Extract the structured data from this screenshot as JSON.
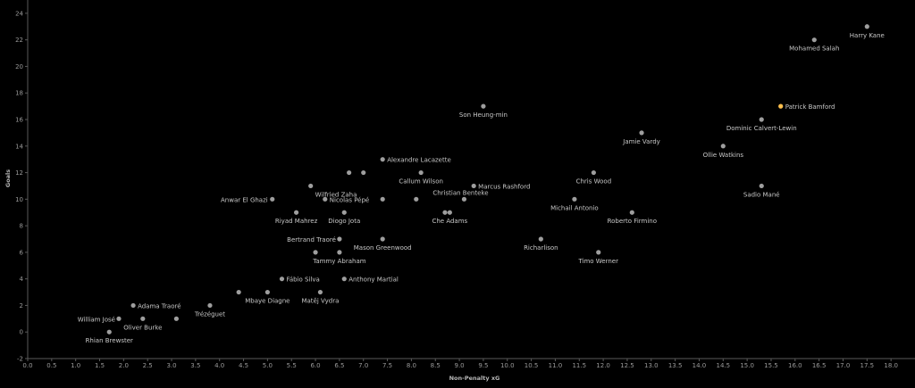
{
  "chart_data": {
    "type": "scatter",
    "title": "",
    "xlabel": "Non-Penalty xG",
    "ylabel": "Goals",
    "xlim": [
      0,
      18.5
    ],
    "ylim": [
      -2,
      25
    ],
    "x_ticks": [
      "0.0",
      "0.5",
      "1.0",
      "1.5",
      "2.0",
      "2.5",
      "3.0",
      "3.5",
      "4.0",
      "4.5",
      "5.0",
      "5.5",
      "6.0",
      "6.5",
      "7.0",
      "7.5",
      "8.0",
      "8.5",
      "9.0",
      "9.5",
      "10.0",
      "10.5",
      "11.0",
      "11.5",
      "12.0",
      "12.5",
      "13.0",
      "13.5",
      "14.0",
      "14.5",
      "15.0",
      "15.5",
      "16.0",
      "16.5",
      "17.0",
      "17.5",
      "18.0"
    ],
    "y_ticks": [
      "-2",
      "0",
      "2",
      "4",
      "6",
      "8",
      "10",
      "12",
      "14",
      "16",
      "18",
      "20",
      "22",
      "24"
    ],
    "grid": false,
    "point_color": "#9e9e9e",
    "highlight_color": "#ffc04d",
    "points": [
      {
        "label": "Harry Kane",
        "x": 17.5,
        "y": 23,
        "highlight": false
      },
      {
        "label": "Mohamed Salah",
        "x": 16.4,
        "y": 22,
        "highlight": false
      },
      {
        "label": "Patrick Bamford",
        "x": 15.7,
        "y": 17,
        "highlight": true
      },
      {
        "label": "Dominic Calvert-Lewin",
        "x": 15.3,
        "y": 16,
        "highlight": false
      },
      {
        "label": "Son Heung-min",
        "x": 9.5,
        "y": 17,
        "highlight": false
      },
      {
        "label": "Jamie Vardy",
        "x": 12.8,
        "y": 15,
        "highlight": false
      },
      {
        "label": "Ollie Watkins",
        "x": 14.5,
        "y": 14,
        "highlight": false
      },
      {
        "label": "Sadio Mané",
        "x": 15.3,
        "y": 11,
        "highlight": false
      },
      {
        "label": "Chris Wood",
        "x": 11.8,
        "y": 12,
        "highlight": false
      },
      {
        "label": "Alexandre Lacazette",
        "x": 7.4,
        "y": 13,
        "highlight": false
      },
      {
        "label": "Callum Wilson",
        "x": 8.2,
        "y": 12,
        "highlight": false
      },
      {
        "label": "",
        "x": 6.7,
        "y": 12,
        "highlight": false
      },
      {
        "label": "",
        "x": 7.0,
        "y": 12,
        "highlight": false
      },
      {
        "label": "Wilfried Zaha",
        "x": 5.9,
        "y": 11,
        "highlight": false
      },
      {
        "label": "Marcus Rashford",
        "x": 9.3,
        "y": 11,
        "highlight": false
      },
      {
        "label": "Christian Benteke",
        "x": 9.1,
        "y": 10,
        "highlight": false
      },
      {
        "label": "",
        "x": 8.1,
        "y": 10,
        "highlight": false
      },
      {
        "label": "",
        "x": 7.4,
        "y": 10,
        "highlight": false
      },
      {
        "label": "Anwar El Ghazi",
        "x": 5.1,
        "y": 10,
        "highlight": false
      },
      {
        "label": "Nicolas Pépé",
        "x": 6.2,
        "y": 10,
        "highlight": false
      },
      {
        "label": "Michail Antonio",
        "x": 11.4,
        "y": 10,
        "highlight": false
      },
      {
        "label": "Riyad Mahrez",
        "x": 5.6,
        "y": 9,
        "highlight": false
      },
      {
        "label": "Diogo Jota",
        "x": 6.6,
        "y": 9,
        "highlight": false
      },
      {
        "label": "Che Adams",
        "x": 8.8,
        "y": 9,
        "highlight": false
      },
      {
        "label": "",
        "x": 8.7,
        "y": 9,
        "highlight": false
      },
      {
        "label": "Roberto Firmino",
        "x": 12.6,
        "y": 9,
        "highlight": false
      },
      {
        "label": "Bertrand Traoré",
        "x": 6.5,
        "y": 7,
        "highlight": false
      },
      {
        "label": "Mason Greenwood",
        "x": 7.4,
        "y": 7,
        "highlight": false
      },
      {
        "label": "Richarlison",
        "x": 10.7,
        "y": 7,
        "highlight": false
      },
      {
        "label": "Tammy Abraham",
        "x": 6.5,
        "y": 6,
        "highlight": false
      },
      {
        "label": "",
        "x": 6.0,
        "y": 6,
        "highlight": false
      },
      {
        "label": "Timo Werner",
        "x": 11.9,
        "y": 6,
        "highlight": false
      },
      {
        "label": "Fábio Silva",
        "x": 5.3,
        "y": 4,
        "highlight": false
      },
      {
        "label": "Anthony Martial",
        "x": 6.6,
        "y": 4,
        "highlight": false
      },
      {
        "label": "Mbaye Diagne",
        "x": 5.0,
        "y": 3,
        "highlight": false
      },
      {
        "label": "",
        "x": 4.4,
        "y": 3,
        "highlight": false
      },
      {
        "label": "Matěj Vydra",
        "x": 6.1,
        "y": 3,
        "highlight": false
      },
      {
        "label": "Adama Traoré",
        "x": 2.2,
        "y": 2,
        "highlight": false
      },
      {
        "label": "Trézéguet",
        "x": 3.8,
        "y": 2,
        "highlight": false
      },
      {
        "label": "William José",
        "x": 1.9,
        "y": 1,
        "highlight": false
      },
      {
        "label": "Oliver Burke",
        "x": 2.4,
        "y": 1,
        "highlight": false
      },
      {
        "label": "",
        "x": 3.1,
        "y": 1,
        "highlight": false
      },
      {
        "label": "Rhian Brewster",
        "x": 1.7,
        "y": 0,
        "highlight": false
      }
    ]
  }
}
